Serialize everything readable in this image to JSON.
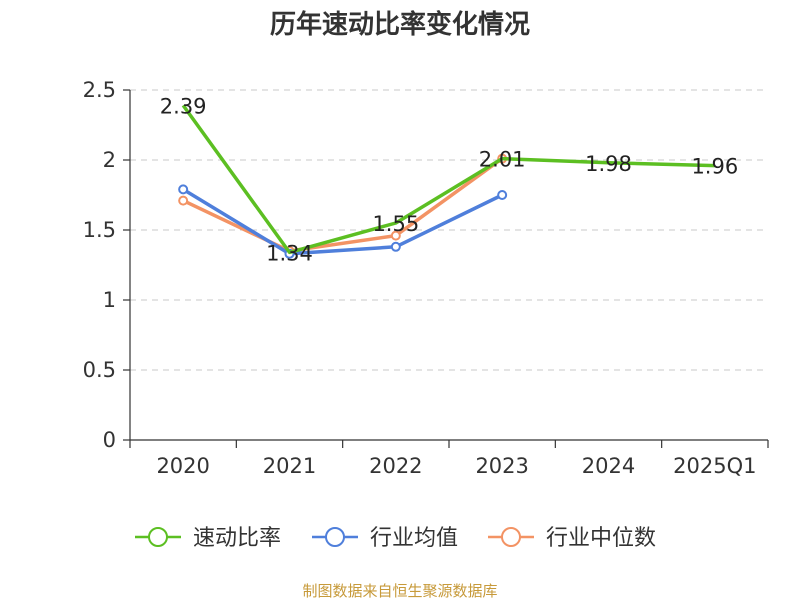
{
  "chart_data": {
    "type": "line",
    "title": "历年速动比率变化情况",
    "categories": [
      "2020",
      "2021",
      "2022",
      "2023",
      "2024",
      "2025Q1"
    ],
    "ylim": [
      0,
      2.5
    ],
    "yticks": [
      "0",
      "0.5",
      "1",
      "1.5",
      "2",
      "2.5"
    ],
    "grid": true,
    "legend_position": "bottom",
    "series": [
      {
        "name": "速动比率",
        "color": "#5cbf22",
        "values": [
          2.39,
          1.34,
          1.55,
          2.01,
          1.98,
          1.96
        ],
        "labels": [
          "2.39",
          "1.34",
          "1.55",
          "2.01",
          "1.98",
          "1.96"
        ]
      },
      {
        "name": "行业均值",
        "color": "#4f7fdb",
        "values": [
          1.79,
          1.33,
          1.38,
          1.75,
          null,
          null
        ]
      },
      {
        "name": "行业中位数",
        "color": "#f39364",
        "values": [
          1.71,
          1.35,
          1.46,
          2.01,
          null,
          null
        ]
      }
    ]
  },
  "source": {
    "text": "制图数据来自恒生聚源数据库",
    "color": "#c79a3a"
  }
}
